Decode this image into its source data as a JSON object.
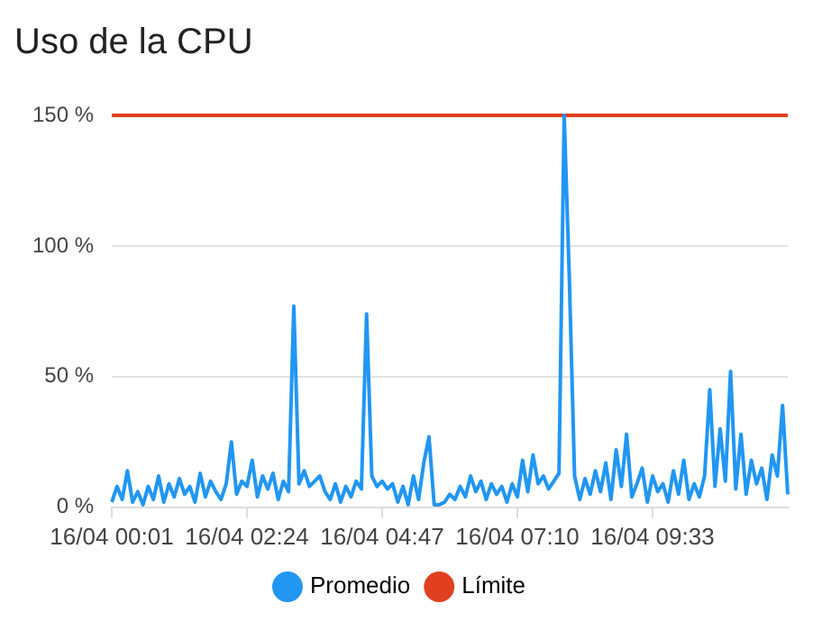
{
  "chart_data": {
    "type": "line",
    "title": "Uso de la CPU",
    "categories": [
      "16/04 00:01",
      null,
      null,
      null,
      null,
      null,
      null,
      null,
      null,
      null,
      null,
      null,
      null,
      null,
      null,
      null,
      null,
      null,
      null,
      null,
      null,
      null,
      null,
      null,
      null,
      null,
      "16/04 02:24",
      null,
      null,
      null,
      null,
      null,
      null,
      null,
      null,
      null,
      null,
      null,
      null,
      null,
      null,
      null,
      null,
      null,
      null,
      null,
      null,
      null,
      null,
      null,
      null,
      null,
      "16/04 04:47",
      null,
      null,
      null,
      null,
      null,
      null,
      null,
      null,
      null,
      null,
      null,
      null,
      null,
      null,
      null,
      null,
      null,
      null,
      null,
      null,
      null,
      null,
      null,
      null,
      null,
      "16/04 07:10",
      null,
      null,
      null,
      null,
      null,
      null,
      null,
      null,
      null,
      null,
      null,
      null,
      null,
      null,
      null,
      null,
      null,
      null,
      null,
      null,
      null,
      null,
      null,
      null,
      null,
      "16/04 09:33",
      null,
      null,
      null,
      null,
      null,
      null,
      null,
      null,
      null,
      null,
      null,
      null,
      null,
      null,
      null,
      null,
      null,
      null,
      null,
      null,
      null,
      null,
      null,
      null,
      null,
      null
    ],
    "series": [
      {
        "name": "Promedio",
        "color": "#2196f3",
        "values": [
          2,
          8,
          3,
          14,
          2,
          6,
          1,
          8,
          3,
          12,
          2,
          9,
          4,
          11,
          5,
          8,
          2,
          13,
          4,
          10,
          6,
          3,
          9,
          25,
          5,
          10,
          8,
          18,
          4,
          12,
          7,
          13,
          3,
          10,
          6,
          77,
          9,
          14,
          8,
          10,
          12,
          6,
          3,
          9,
          2,
          8,
          4,
          10,
          7,
          74,
          12,
          8,
          10,
          7,
          9,
          2,
          8,
          1,
          12,
          3,
          17,
          27,
          1,
          1,
          2,
          5,
          3,
          8,
          4,
          12,
          6,
          10,
          3,
          9,
          5,
          8,
          2,
          9,
          4,
          18,
          6,
          20,
          9,
          12,
          7,
          10,
          13,
          150,
          87,
          12,
          3,
          11,
          5,
          14,
          6,
          17,
          3,
          22,
          8,
          28,
          4,
          9,
          15,
          2,
          12,
          6,
          9,
          2,
          14,
          5,
          18,
          3,
          9,
          4,
          12,
          45,
          8,
          30,
          10,
          52,
          7,
          28,
          5,
          18,
          9,
          15,
          3,
          20,
          12,
          39,
          5
        ]
      },
      {
        "name": "Límite",
        "color": "#e0401f",
        "values": [
          150,
          150,
          150,
          150,
          150,
          150,
          150,
          150,
          150,
          150,
          150,
          150,
          150,
          150,
          150,
          150,
          150,
          150,
          150,
          150,
          150,
          150,
          150,
          150,
          150,
          150,
          150,
          150,
          150,
          150,
          150,
          150,
          150,
          150,
          150,
          150,
          150,
          150,
          150,
          150,
          150,
          150,
          150,
          150,
          150,
          150,
          150,
          150,
          150,
          150,
          150,
          150,
          150,
          150,
          150,
          150,
          150,
          150,
          150,
          150,
          150,
          150,
          150,
          150,
          150,
          150,
          150,
          150,
          150,
          150,
          150,
          150,
          150,
          150,
          150,
          150,
          150,
          150,
          150,
          150,
          150,
          150,
          150,
          150,
          150,
          150,
          150,
          150,
          150,
          150,
          150,
          150,
          150,
          150,
          150,
          150,
          150,
          150,
          150,
          150,
          150,
          150,
          150,
          150,
          150,
          150,
          150,
          150,
          150,
          150,
          150,
          150,
          150,
          150,
          150,
          150,
          150,
          150,
          150,
          150,
          150,
          150,
          150,
          150,
          150,
          150,
          150,
          150,
          150,
          150,
          150
        ]
      }
    ],
    "ylim": [
      0,
      150
    ],
    "yticks": [
      {
        "value": 0,
        "label": "0 %"
      },
      {
        "value": 50,
        "label": "50 %"
      },
      {
        "value": 100,
        "label": "100 %"
      },
      {
        "value": 150,
        "label": "150 %"
      }
    ],
    "grid": "y",
    "legend": "bottom",
    "marker": "none",
    "line_style": "solid"
  }
}
